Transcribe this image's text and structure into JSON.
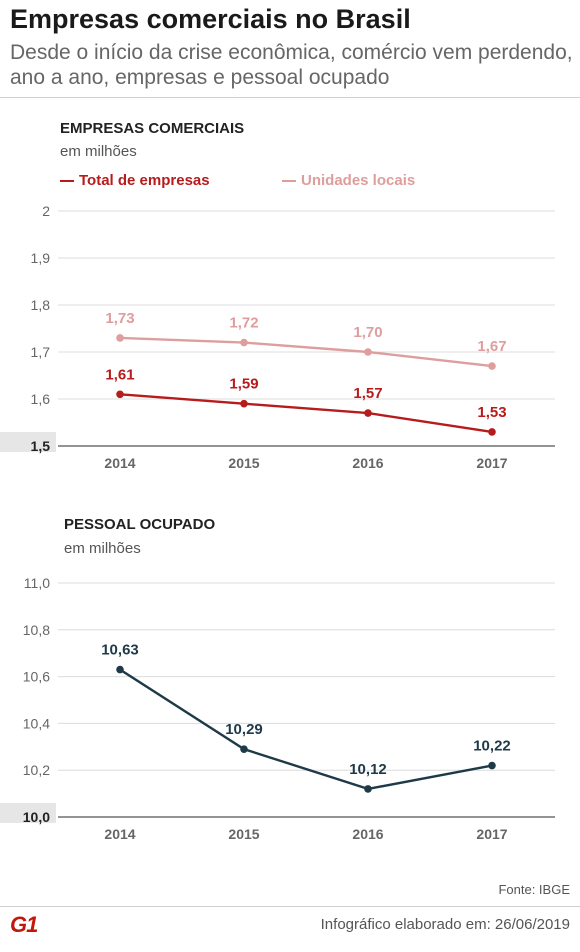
{
  "header": {
    "title": "Empresas comerciais no Brasil",
    "subtitle": "Desde o início da crise econômica, comércio vem perdendo, ano a ano, empresas e pessoal ocupado"
  },
  "chart_data": [
    {
      "type": "line",
      "title": "EMPRESAS COMERCIAIS",
      "subtitle": "em milhões",
      "x": [
        "2014",
        "2015",
        "2016",
        "2017"
      ],
      "yticks": [
        "1,5",
        "1,6",
        "1,7",
        "1,8",
        "1,9",
        "2"
      ],
      "ylim": [
        1.5,
        2.0
      ],
      "grid": true,
      "legend_position": "top",
      "series": [
        {
          "name": "Total de empresas",
          "color": "#b71c1c",
          "values": [
            1.61,
            1.59,
            1.57,
            1.53
          ],
          "labels": [
            "1,61",
            "1,59",
            "1,57",
            "1,53"
          ]
        },
        {
          "name": "Unidades locais",
          "color": "#de9e9e",
          "values": [
            1.73,
            1.72,
            1.7,
            1.67
          ],
          "labels": [
            "1,73",
            "1,72",
            "1,70",
            "1,67"
          ]
        }
      ]
    },
    {
      "type": "line",
      "title": "PESSOAL OCUPADO",
      "subtitle": "em milhões",
      "x": [
        "2014",
        "2015",
        "2016",
        "2017"
      ],
      "yticks": [
        "10,0",
        "10,2",
        "10,4",
        "10,6",
        "10,8",
        "11,0"
      ],
      "ylim": [
        10.0,
        11.0
      ],
      "grid": true,
      "series": [
        {
          "color": "#1e3a48",
          "values": [
            10.63,
            10.29,
            10.12,
            10.22
          ],
          "labels": [
            "10,63",
            "10,29",
            "10,12",
            "10,22"
          ]
        }
      ]
    }
  ],
  "footer": {
    "source": "Fonte: IBGE",
    "date": "Infográfico elaborado em: 26/06/2019",
    "logo": "G1"
  }
}
